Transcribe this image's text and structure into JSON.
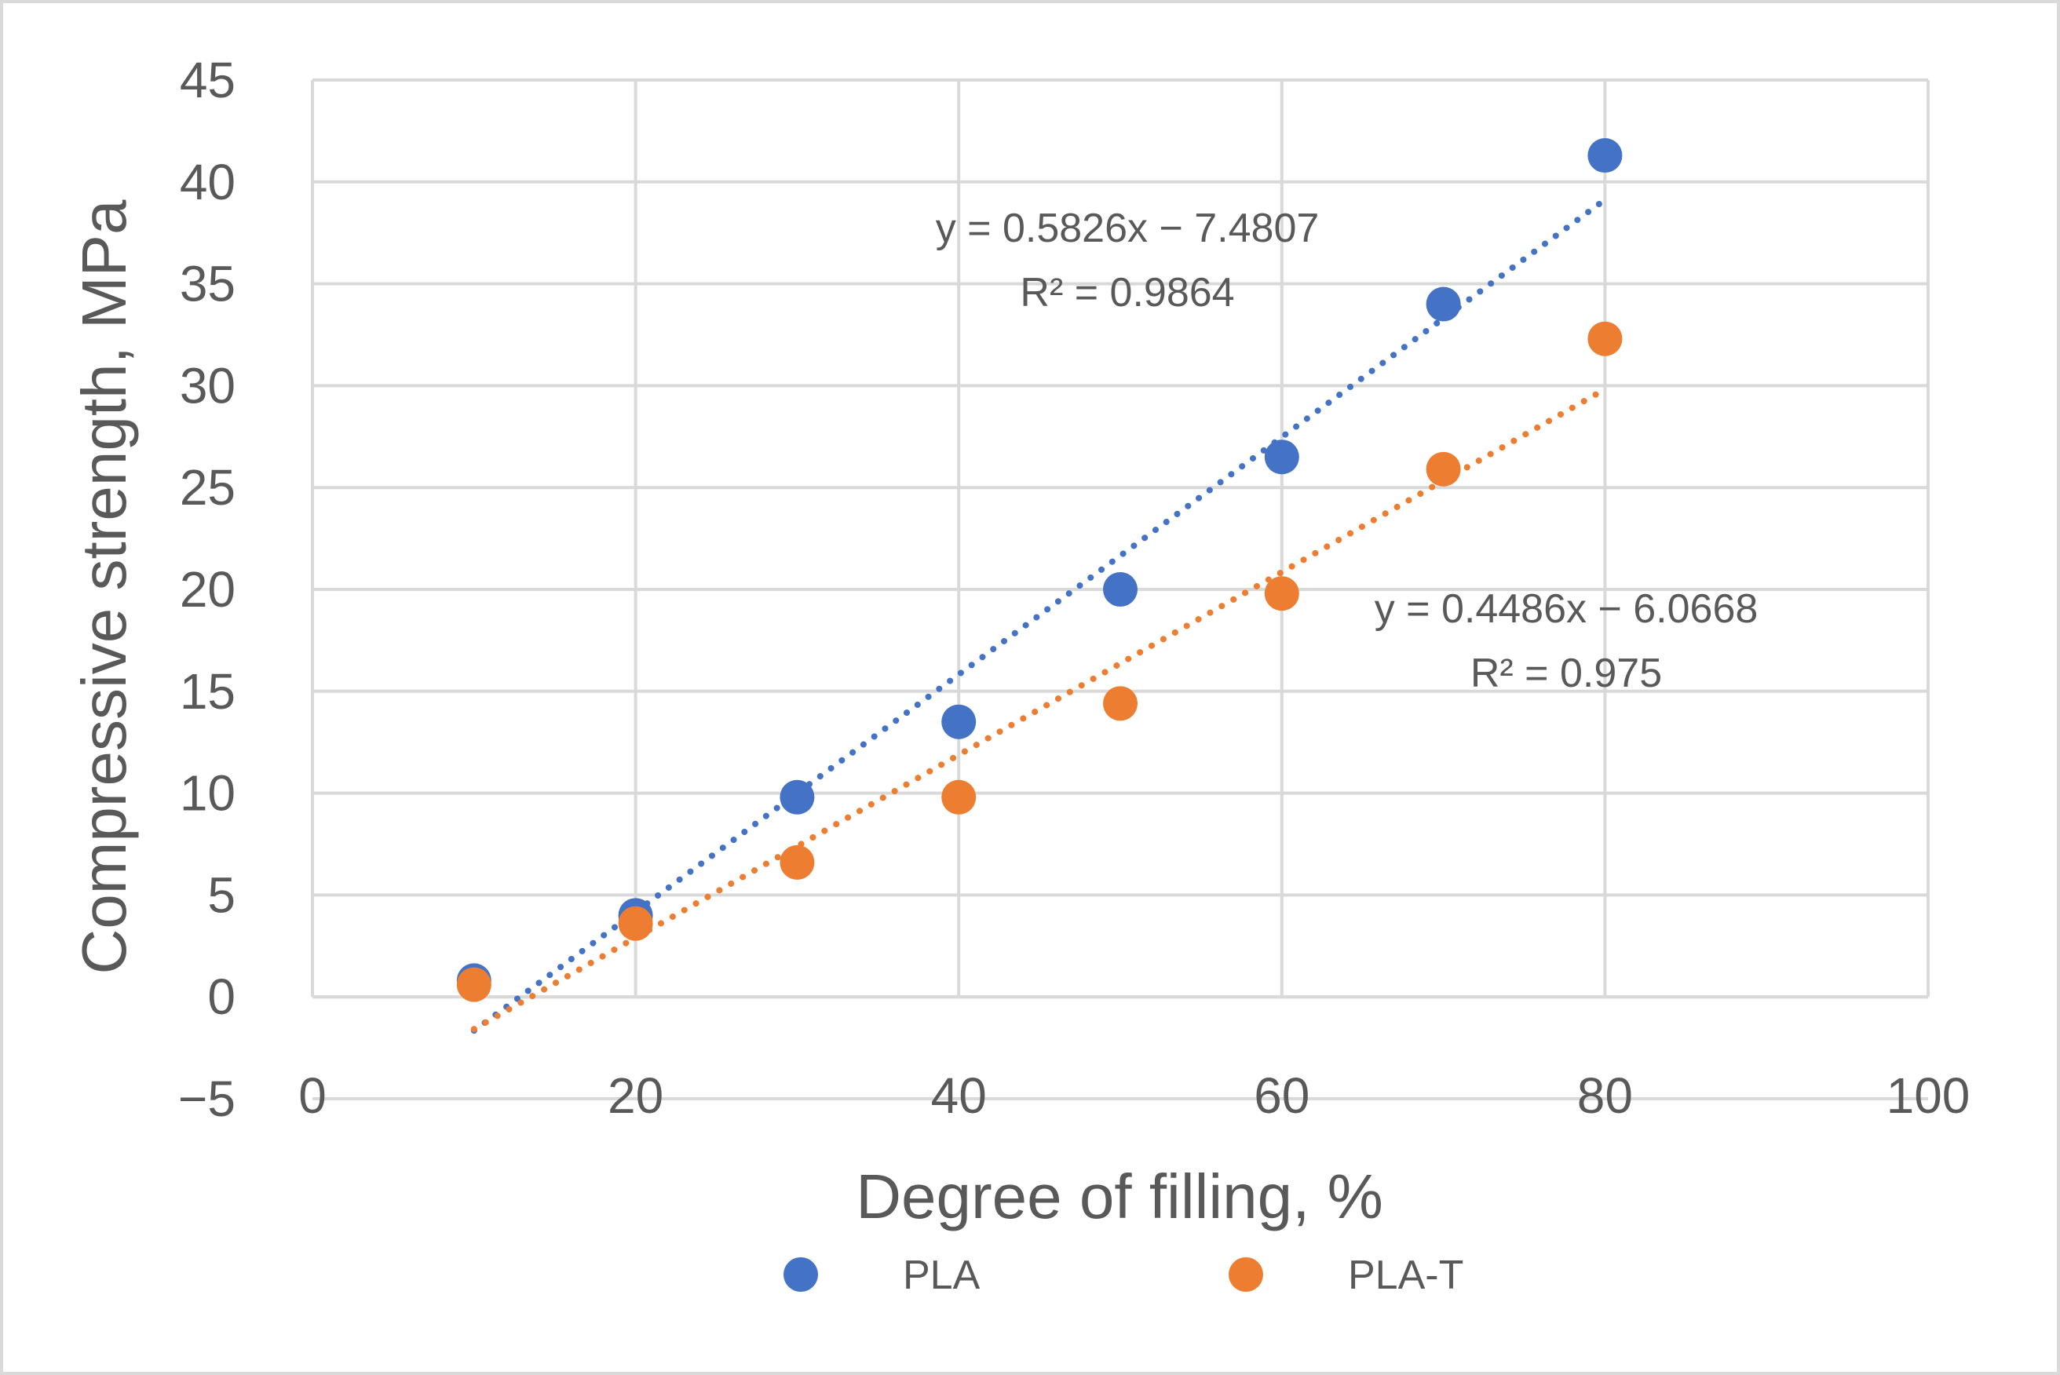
{
  "chart_data": {
    "type": "scatter",
    "title": "",
    "xlabel": "Degree of filling, %",
    "ylabel": "Compressive strength, MPa",
    "xlim": [
      0,
      100
    ],
    "ylim": [
      -5,
      45
    ],
    "x_ticks": [
      0,
      20,
      40,
      60,
      80,
      100
    ],
    "y_ticks": [
      -5,
      0,
      5,
      10,
      15,
      20,
      25,
      30,
      35,
      40,
      45
    ],
    "x_tick_labels": [
      "0",
      "20",
      "40",
      "60",
      "80",
      "100"
    ],
    "y_tick_labels": [
      "−5",
      "0",
      "5",
      "10",
      "15",
      "20",
      "25",
      "30",
      "35",
      "40",
      "45"
    ],
    "grid": true,
    "legend_position": "bottom",
    "series": [
      {
        "name": "PLA",
        "color": "#4472C4",
        "x": [
          10,
          20,
          30,
          40,
          50,
          60,
          70,
          80
        ],
        "y": [
          0.8,
          4.0,
          9.8,
          13.5,
          20.0,
          26.5,
          34.0,
          41.3
        ],
        "trendline": {
          "slope": 0.5826,
          "intercept": -7.4807,
          "x_range": [
            10,
            80
          ],
          "equation": "y = 0.5826x − 7.4807",
          "r2": "R² = 0.9864"
        }
      },
      {
        "name": "PLA-T",
        "color": "#ED7D31",
        "x": [
          10,
          20,
          30,
          40,
          50,
          60,
          70,
          80
        ],
        "y": [
          0.6,
          3.6,
          6.6,
          9.8,
          14.4,
          19.8,
          25.9,
          32.3
        ],
        "trendline": {
          "slope": 0.4486,
          "intercept": -6.0668,
          "x_range": [
            10,
            80
          ],
          "equation": "y = 0.4486x − 6.0668",
          "r2": "R² = 0.975"
        }
      }
    ]
  }
}
